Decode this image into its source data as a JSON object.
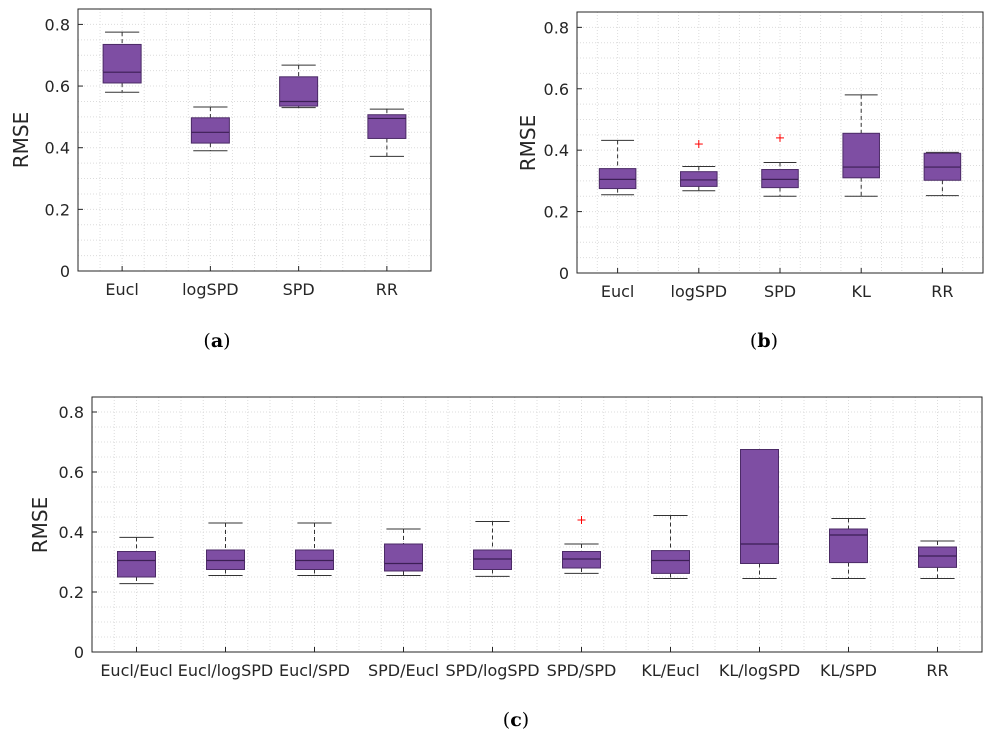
{
  "chart_data": [
    {
      "type": "boxplot",
      "caption_letter": "a",
      "ylabel": "RMSE",
      "ylim": [
        0,
        0.85
      ],
      "yticks": [
        "0",
        "0.2",
        "0.4",
        "0.6",
        "0.8"
      ],
      "grid": true,
      "categories": [
        "Eucl",
        "logSPD",
        "SPD",
        "RR"
      ],
      "boxes": [
        {
          "whisker_low": 0.58,
          "q1": 0.61,
          "median": 0.645,
          "q3": 0.735,
          "whisker_high": 0.775,
          "outliers": []
        },
        {
          "whisker_low": 0.39,
          "q1": 0.415,
          "median": 0.45,
          "q3": 0.497,
          "whisker_high": 0.532,
          "outliers": []
        },
        {
          "whisker_low": 0.53,
          "q1": 0.535,
          "median": 0.55,
          "q3": 0.63,
          "whisker_high": 0.668,
          "outliers": []
        },
        {
          "whisker_low": 0.372,
          "q1": 0.43,
          "median": 0.495,
          "q3": 0.507,
          "whisker_high": 0.525,
          "outliers": []
        }
      ]
    },
    {
      "type": "boxplot",
      "caption_letter": "b",
      "ylabel": "RMSE",
      "ylim": [
        0,
        0.85
      ],
      "yticks": [
        "0",
        "0.2",
        "0.4",
        "0.6",
        "0.8"
      ],
      "grid": true,
      "categories": [
        "Eucl",
        "logSPD",
        "SPD",
        "KL",
        "RR"
      ],
      "boxes": [
        {
          "whisker_low": 0.255,
          "q1": 0.275,
          "median": 0.305,
          "q3": 0.34,
          "whisker_high": 0.432,
          "outliers": []
        },
        {
          "whisker_low": 0.268,
          "q1": 0.282,
          "median": 0.303,
          "q3": 0.33,
          "whisker_high": 0.347,
          "outliers": [
            0.42
          ]
        },
        {
          "whisker_low": 0.25,
          "q1": 0.278,
          "median": 0.305,
          "q3": 0.337,
          "whisker_high": 0.36,
          "outliers": [
            0.44
          ]
        },
        {
          "whisker_low": 0.25,
          "q1": 0.31,
          "median": 0.345,
          "q3": 0.455,
          "whisker_high": 0.58,
          "outliers": []
        },
        {
          "whisker_low": 0.252,
          "q1": 0.302,
          "median": 0.345,
          "q3": 0.39,
          "whisker_high": 0.393,
          "outliers": []
        }
      ]
    },
    {
      "type": "boxplot",
      "caption_letter": "c",
      "ylabel": "RMSE",
      "ylim": [
        0,
        0.85
      ],
      "yticks": [
        "0",
        "0.2",
        "0.4",
        "0.6",
        "0.8"
      ],
      "grid": true,
      "categories": [
        "Eucl/Eucl",
        "Eucl/logSPD",
        "Eucl/SPD",
        "SPD/Eucl",
        "SPD/logSPD",
        "SPD/SPD",
        "KL/Eucl",
        "KL/logSPD",
        "KL/SPD",
        "RR"
      ],
      "boxes": [
        {
          "whisker_low": 0.228,
          "q1": 0.25,
          "median": 0.305,
          "q3": 0.335,
          "whisker_high": 0.382,
          "outliers": []
        },
        {
          "whisker_low": 0.255,
          "q1": 0.275,
          "median": 0.305,
          "q3": 0.34,
          "whisker_high": 0.43,
          "outliers": []
        },
        {
          "whisker_low": 0.255,
          "q1": 0.275,
          "median": 0.305,
          "q3": 0.34,
          "whisker_high": 0.43,
          "outliers": []
        },
        {
          "whisker_low": 0.255,
          "q1": 0.27,
          "median": 0.295,
          "q3": 0.36,
          "whisker_high": 0.41,
          "outliers": []
        },
        {
          "whisker_low": 0.252,
          "q1": 0.275,
          "median": 0.31,
          "q3": 0.34,
          "whisker_high": 0.435,
          "outliers": []
        },
        {
          "whisker_low": 0.262,
          "q1": 0.28,
          "median": 0.31,
          "q3": 0.335,
          "whisker_high": 0.36,
          "outliers": [
            0.44
          ]
        },
        {
          "whisker_low": 0.245,
          "q1": 0.262,
          "median": 0.305,
          "q3": 0.338,
          "whisker_high": 0.455,
          "outliers": []
        },
        {
          "whisker_low": 0.245,
          "q1": 0.295,
          "median": 0.36,
          "q3": 0.675,
          "whisker_high": 0.675,
          "outliers": []
        },
        {
          "whisker_low": 0.245,
          "q1": 0.298,
          "median": 0.39,
          "q3": 0.41,
          "whisker_high": 0.445,
          "outliers": []
        },
        {
          "whisker_low": 0.245,
          "q1": 0.282,
          "median": 0.32,
          "q3": 0.35,
          "whisker_high": 0.37,
          "outliers": []
        }
      ]
    }
  ],
  "style": {
    "box_fill": "#7e4ea3",
    "box_stroke": "#4b2a66",
    "median_color": "#3c1f55",
    "whisker_color": "#333333",
    "outlier_color": "#ff0000",
    "grid_color": "#dcdcdc",
    "axis_color": "#262626"
  }
}
